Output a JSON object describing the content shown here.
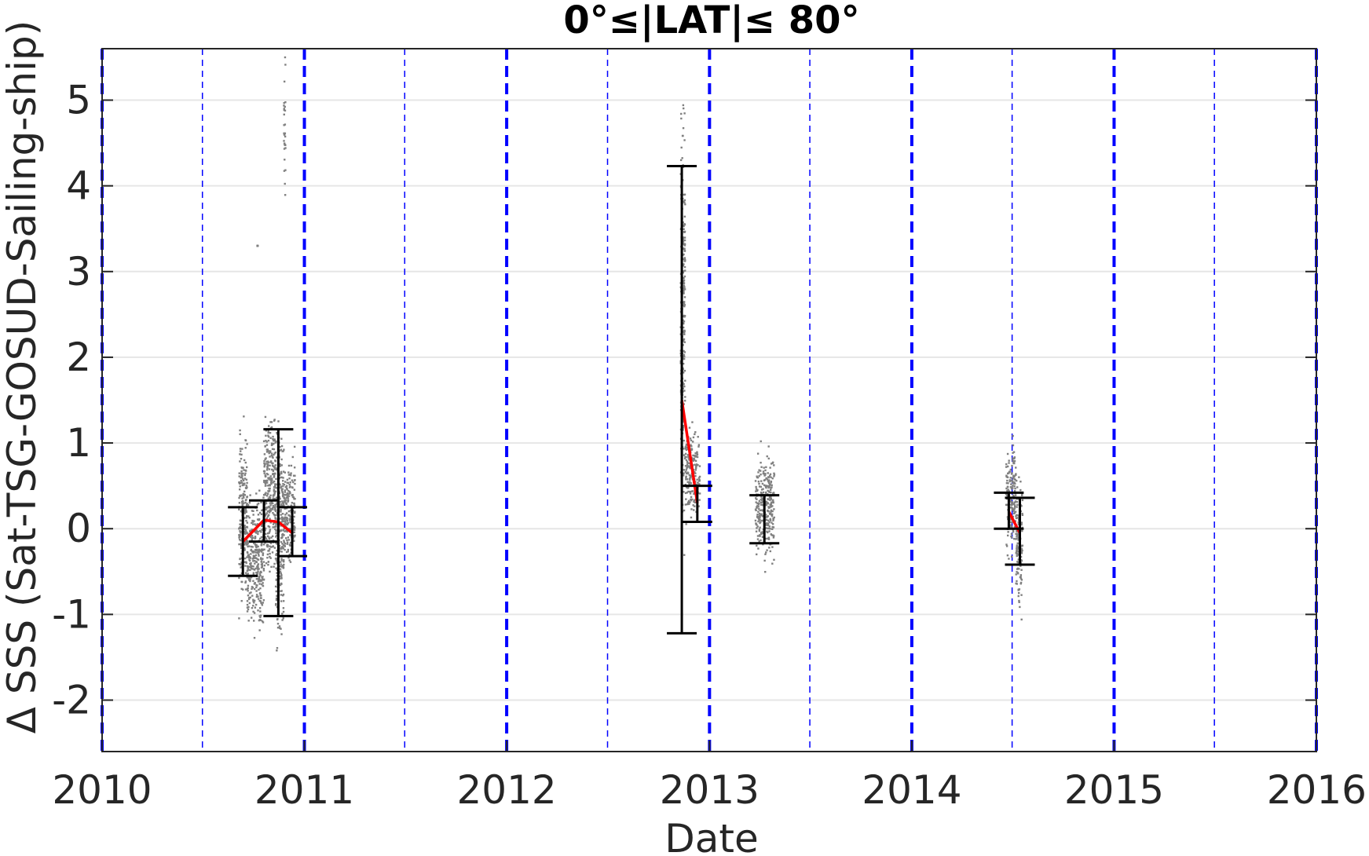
{
  "chart_data": {
    "type": "scatter",
    "title": "0°≤|LAT|≤ 80°",
    "xlabel": "Date",
    "ylabel": "Δ SSS (Sat-TSG-GOSUD-Sailing-ship)",
    "xlim": [
      "2010-01-01",
      "2016-01-01"
    ],
    "ylim": [
      -2.6,
      5.6
    ],
    "x_ticks": [
      {
        "value": "2010-01-01",
        "label": "2010"
      },
      {
        "value": "2011-01-01",
        "label": "2011"
      },
      {
        "value": "2012-01-01",
        "label": "2012"
      },
      {
        "value": "2013-01-01",
        "label": "2013"
      },
      {
        "value": "2014-01-01",
        "label": "2014"
      },
      {
        "value": "2015-01-01",
        "label": "2015"
      },
      {
        "value": "2016-01-01",
        "label": "2016"
      }
    ],
    "y_ticks": [
      {
        "value": 5,
        "label": "5"
      },
      {
        "value": 4,
        "label": "4"
      },
      {
        "value": 3,
        "label": "3"
      },
      {
        "value": 2,
        "label": "2"
      },
      {
        "value": 1,
        "label": "1"
      },
      {
        "value": 0,
        "label": "0"
      },
      {
        "value": -1,
        "label": "-1"
      },
      {
        "value": -2,
        "label": "-2"
      }
    ],
    "grid": "horizontal",
    "colors": {
      "points": "#808080",
      "errorbars": "#000000",
      "mean_line": "#ff0000",
      "year_lines": "#0000ff",
      "half_year_lines": "#0000ff",
      "grid": "#e6e6e6"
    },
    "year_lines": [
      "2010-01-01",
      "2011-01-01",
      "2012-01-01",
      "2013-01-01",
      "2014-01-01",
      "2015-01-01",
      "2016-01-01"
    ],
    "half_year_lines": [
      "2010-07-01",
      "2011-07-01",
      "2012-07-01",
      "2013-07-01",
      "2014-07-01",
      "2015-07-01"
    ],
    "point_clusters": [
      {
        "x_start": "2010-09-05",
        "x_end": "2010-09-20",
        "y_min": -1.15,
        "y_max": 1.45
      },
      {
        "x_start": "2010-09-20",
        "x_end": "2010-10-20",
        "y_min": -1.4,
        "y_max": 0.6
      },
      {
        "x_start": "2010-10-20",
        "x_end": "2010-11-10",
        "y_min": -0.8,
        "y_max": 1.75
      },
      {
        "x_start": "2010-11-10",
        "x_end": "2010-11-25",
        "y_min": -1.7,
        "y_max": 1.55
      },
      {
        "x_start": "2010-11-25",
        "x_end": "2010-12-15",
        "y_min": -0.7,
        "y_max": 1.1
      },
      {
        "x_start": "2010-11-25",
        "x_end": "2010-11-28",
        "y_min": 3.7,
        "y_max": 5.6
      },
      {
        "x_start": "2010-10-08",
        "x_end": "2010-10-09",
        "y_min": 3.3,
        "y_max": 3.3
      },
      {
        "x_start": "2012-11-10",
        "x_end": "2012-11-18",
        "y_min": -0.55,
        "y_max": 5.6
      },
      {
        "x_start": "2012-11-18",
        "x_end": "2012-12-15",
        "y_min": -0.05,
        "y_max": 1.3
      },
      {
        "x_start": "2013-03-25",
        "x_end": "2013-04-28",
        "y_min": -0.55,
        "y_max": 1.1
      },
      {
        "x_start": "2014-06-20",
        "x_end": "2014-07-08",
        "y_min": -0.5,
        "y_max": 1.2
      },
      {
        "x_start": "2014-07-08",
        "x_end": "2014-07-20",
        "y_min": -1.25,
        "y_max": 0.9
      }
    ],
    "mean_line_segments": [
      {
        "points": [
          [
            "2010-09-12",
            -0.15
          ],
          [
            "2010-10-20",
            0.1
          ],
          [
            "2010-11-15",
            0.08
          ],
          [
            "2010-12-10",
            -0.05
          ]
        ]
      },
      {
        "points": [
          [
            "2012-11-12",
            1.5
          ],
          [
            "2012-12-10",
            0.3
          ]
        ]
      },
      {
        "points": [
          [
            "2014-06-25",
            0.2
          ],
          [
            "2014-07-15",
            -0.05
          ]
        ]
      }
    ],
    "error_bars": [
      {
        "x": "2010-09-12",
        "low": -0.55,
        "high": 0.25,
        "mean": -0.15
      },
      {
        "x": "2010-10-20",
        "low": -0.15,
        "high": 0.33,
        "mean": 0.1
      },
      {
        "x": "2010-11-15",
        "low": -1.02,
        "high": 1.16,
        "mean": 0.08
      },
      {
        "x": "2010-12-10",
        "low": -0.32,
        "high": 0.25,
        "mean": -0.05
      },
      {
        "x": "2012-11-12",
        "low": -1.22,
        "high": 4.23,
        "mean": 1.5
      },
      {
        "x": "2012-12-10",
        "low": 0.08,
        "high": 0.5,
        "mean": 0.3
      },
      {
        "x": "2013-04-10",
        "low": -0.17,
        "high": 0.39,
        "mean": 0.1
      },
      {
        "x": "2014-06-25",
        "low": 0.0,
        "high": 0.42,
        "mean": 0.2
      },
      {
        "x": "2014-07-15",
        "low": -0.42,
        "high": 0.36,
        "mean": -0.05
      }
    ]
  }
}
